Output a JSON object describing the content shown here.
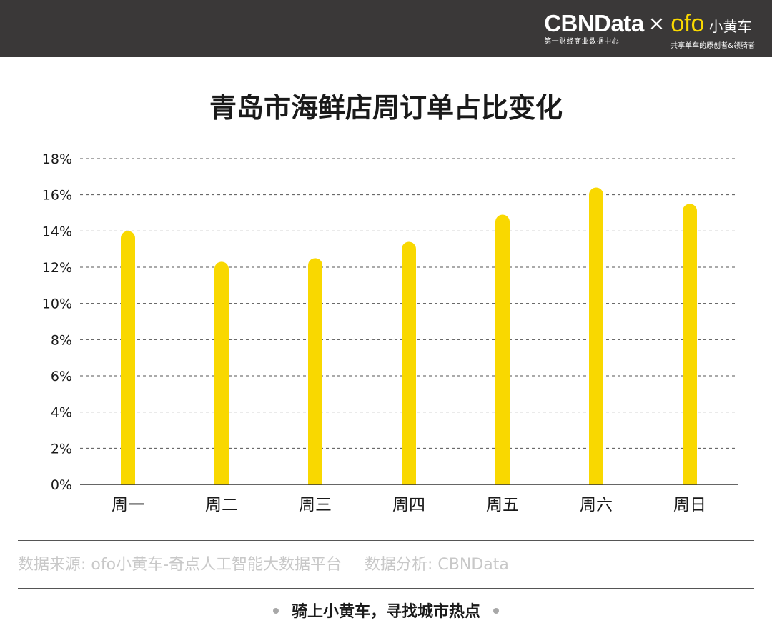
{
  "header": {
    "cbn_logo": "CBNData",
    "cbn_subtitle": "第一财经商业数据中心",
    "times_sign": "×",
    "ofo_logo": "ofo",
    "ofo_name": "小黄车",
    "ofo_subtitle": "共享单车的原创者&领骑者"
  },
  "chart_data": {
    "type": "bar",
    "title": "青岛市海鲜店周订单占比变化",
    "xlabel": "",
    "ylabel": "",
    "categories": [
      "周一",
      "周二",
      "周三",
      "周四",
      "周五",
      "周六",
      "周日"
    ],
    "values": [
      14.0,
      12.3,
      12.5,
      13.4,
      14.9,
      16.4,
      15.5
    ],
    "ylim": [
      0,
      18
    ],
    "yticks": [
      0,
      2,
      4,
      6,
      8,
      10,
      12,
      14,
      16,
      18
    ],
    "ytick_labels": [
      "0%",
      "2%",
      "4%",
      "6%",
      "8%",
      "10%",
      "12%",
      "14%",
      "16%",
      "18%"
    ],
    "value_unit": "%",
    "grid": true,
    "grid_style": "dashed",
    "bar_color": "#f9d800"
  },
  "footer": {
    "source": "数据来源: ofo小黄车-奇点人工智能大数据平台",
    "analysis": "数据分析: CBNData",
    "slogan": "骑上小黄车，寻找城市热点"
  }
}
